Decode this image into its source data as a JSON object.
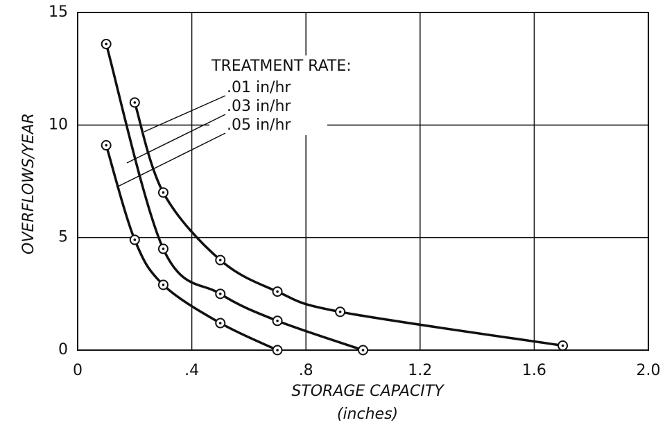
{
  "chart_data": {
    "type": "line",
    "x_label": "STORAGE CAPACITY",
    "x_sublabel": "(inches)",
    "y_label": "OVERFLOWS/YEAR",
    "legend_title": "TREATMENT RATE:",
    "xlim": [
      0,
      2.0
    ],
    "ylim": [
      0,
      15
    ],
    "xticks": [
      0,
      {
        "value": 0.4,
        "label": ".4"
      },
      {
        "value": 0.8,
        "label": ".8"
      },
      1.2,
      1.6,
      {
        "value": 2.0,
        "label": "2.0"
      }
    ],
    "yticks": [
      0,
      5,
      10,
      15
    ],
    "grid": true,
    "series": [
      {
        "name": ".01 in/hr",
        "color": "#111111",
        "x": [
          0.2,
          0.3,
          0.5,
          0.7,
          0.92,
          1.7
        ],
        "values": [
          11,
          7,
          4,
          2.6,
          1.7,
          0.2
        ]
      },
      {
        "name": ".03 in/hr",
        "color": "#111111",
        "x": [
          0.1,
          0.3,
          0.5,
          0.7,
          1.0
        ],
        "values": [
          13.6,
          4.5,
          2.5,
          1.3,
          0
        ]
      },
      {
        "name": ".05 in/hr",
        "color": "#111111",
        "x": [
          0.1,
          0.2,
          0.3,
          0.5,
          0.7
        ],
        "values": [
          9.1,
          4.9,
          2.9,
          1.2,
          0
        ]
      }
    ]
  }
}
